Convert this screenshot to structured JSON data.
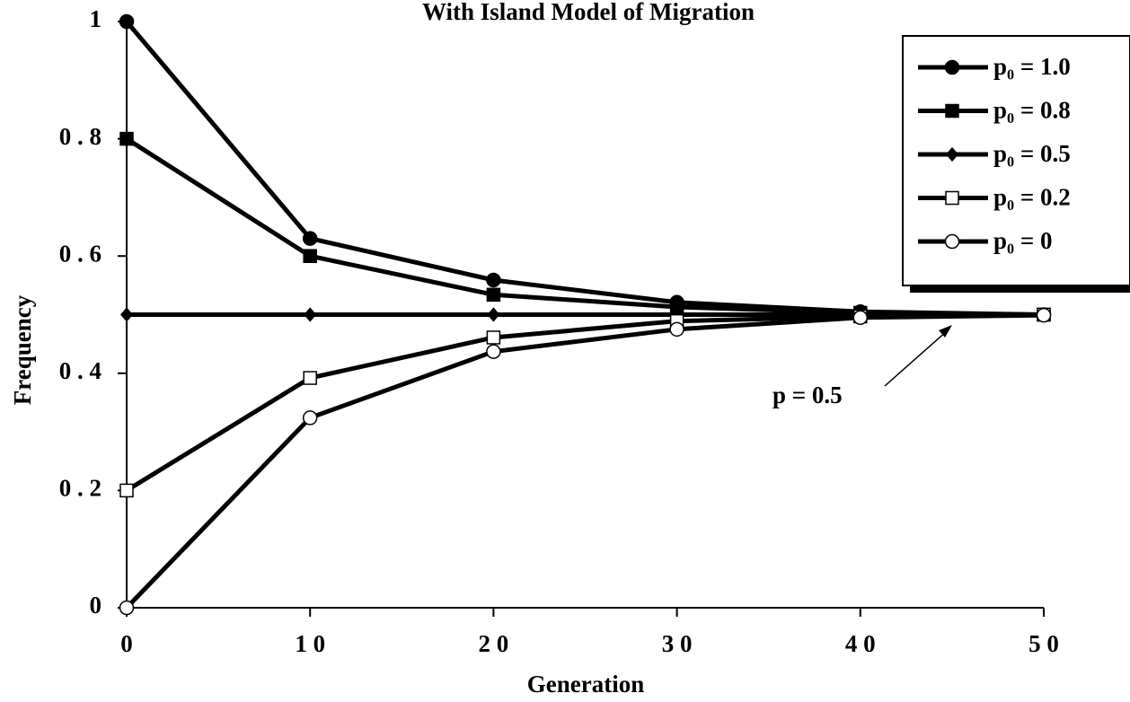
{
  "chart_data": {
    "type": "line",
    "title": "With Island Model of Migration",
    "x_label": "Generation",
    "y_label": "Frequency",
    "x": [
      0,
      10,
      20,
      30,
      40,
      50
    ],
    "series": [
      {
        "name": "p₀ = 1.0",
        "color": "#000000",
        "marker": "circle",
        "marker_fill": "#000000",
        "values": [
          1,
          0.63,
          0.559,
          0.521,
          0.505,
          0.5
        ]
      },
      {
        "name": "p₀ = 0.8",
        "color": "#000000",
        "marker": "square",
        "marker_fill": "#000000",
        "values": [
          0.8,
          0.6,
          0.534,
          0.513,
          0.503,
          0.5
        ]
      },
      {
        "name": "p₀ = 0.5",
        "color": "#000000",
        "marker": "diamond",
        "marker_fill": "#000000",
        "values": [
          0.5,
          0.5,
          0.5,
          0.5,
          0.5,
          0.5
        ]
      },
      {
        "name": "p₀ = 0.2",
        "color": "#000000",
        "marker": "square",
        "marker_fill": "#ffffff",
        "values": [
          0.2,
          0.392,
          0.461,
          0.489,
          0.497,
          0.5
        ]
      },
      {
        "name": "p₀ = 0",
        "color": "#000000",
        "marker": "circle",
        "marker_fill": "#ffffff",
        "values": [
          0,
          0.324,
          0.437,
          0.475,
          0.495,
          0.499
        ]
      }
    ],
    "annotation": "p = 0.5",
    "xlim": [
      0,
      50
    ],
    "xticks": [
      0,
      {
        "value": 10,
        "label": "1 0"
      },
      {
        "value": 20,
        "label": "2 0"
      },
      {
        "value": 30,
        "label": "3 0"
      },
      {
        "value": 40,
        "label": "4 0"
      },
      {
        "value": 50,
        "label": "5 0"
      }
    ],
    "ylim": [
      0,
      1
    ],
    "yticks": [
      0,
      {
        "value": 0.2,
        "label": "0 . 2"
      },
      {
        "value": 0.4,
        "label": "0 . 4"
      },
      {
        "value": 0.6,
        "label": "0 . 6"
      },
      {
        "value": 0.8,
        "label": "0 . 8"
      },
      1
    ],
    "grid": false,
    "legend": "top-right"
  }
}
